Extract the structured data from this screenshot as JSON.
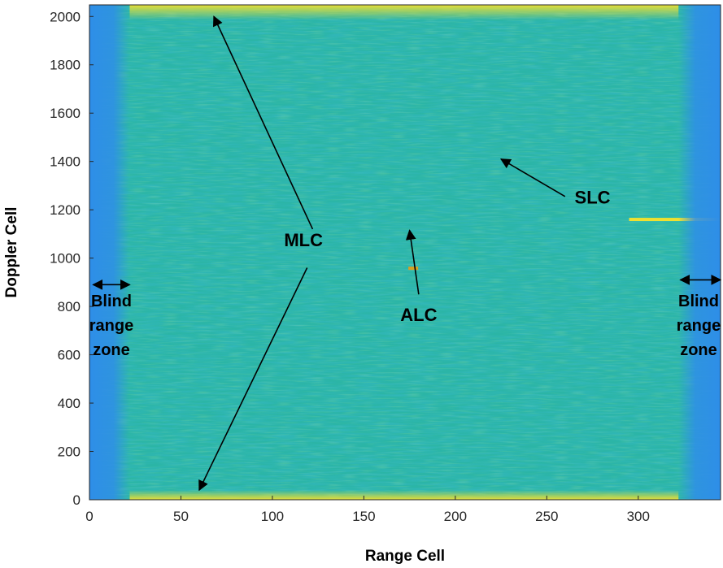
{
  "chart_data": {
    "type": "heatmap",
    "xlabel": "Range Cell",
    "ylabel": "Doppler Cell",
    "xlim": [
      0,
      345
    ],
    "ylim": [
      0,
      2048
    ],
    "x_ticks": [
      0,
      50,
      100,
      150,
      200,
      250,
      300
    ],
    "y_ticks": [
      0,
      200,
      400,
      600,
      800,
      1000,
      1200,
      1400,
      1600,
      1800,
      2000
    ],
    "colormap": "parula",
    "colors": {
      "background_field": "#2bb5a6",
      "blind_zone": "#2e8ee8",
      "strong_clutter": "#f0e030"
    },
    "blind_zones": [
      {
        "range_start": 0,
        "range_end": 22
      },
      {
        "range_start": 322,
        "range_end": 345
      }
    ],
    "clutter_features": [
      {
        "id": "mlc_top",
        "range_start": 22,
        "range_end": 322,
        "doppler_start": 1985,
        "doppler_end": 2048
      },
      {
        "id": "mlc_bottom",
        "range_start": 22,
        "range_end": 322,
        "doppler_start": 0,
        "doppler_end": 40
      },
      {
        "id": "slc",
        "range_start": 295,
        "range_end": 345,
        "doppler_value": 1160
      },
      {
        "id": "alc",
        "range_value": 177,
        "doppler_value": 958
      }
    ],
    "annotations": [
      {
        "label": "MLC",
        "x": 117,
        "y": 1050
      },
      {
        "label": "ALC",
        "x": 180,
        "y": 740
      },
      {
        "label": "SLC",
        "x": 275,
        "y": 1225
      },
      {
        "label": "Blind range zone",
        "lines": [
          "Blind",
          "range",
          "zone"
        ],
        "x": 12,
        "y": 800
      },
      {
        "label": "Blind range zone",
        "lines": [
          "Blind",
          "range",
          "zone"
        ],
        "x": 333,
        "y": 800
      }
    ],
    "arrows": [
      {
        "from": [
          122,
          1120
        ],
        "to": [
          68,
          2000
        ]
      },
      {
        "from": [
          119,
          960
        ],
        "to": [
          60,
          40
        ]
      },
      {
        "from": [
          180,
          850
        ],
        "to": [
          175,
          1115
        ]
      },
      {
        "from": [
          260,
          1255
        ],
        "to": [
          225,
          1410
        ]
      },
      {
        "from": [
          2,
          890
        ],
        "to": [
          22,
          890
        ],
        "double": true
      },
      {
        "from": [
          323,
          910
        ],
        "to": [
          345,
          910
        ],
        "double": true
      }
    ]
  }
}
